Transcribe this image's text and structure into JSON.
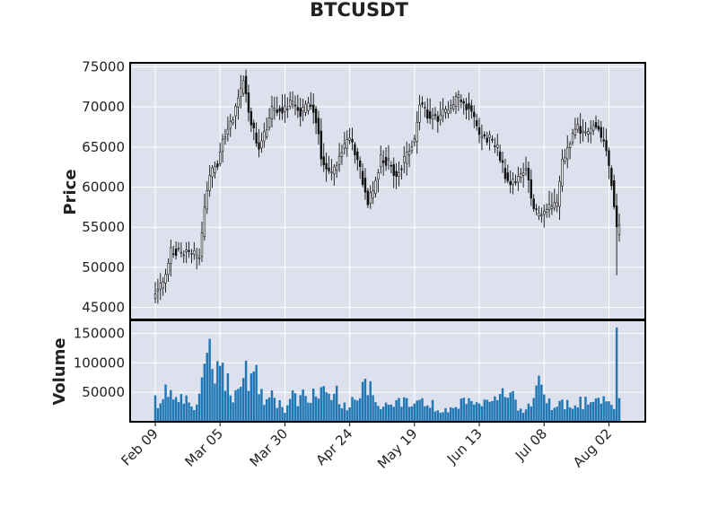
{
  "chart_data": {
    "type": "candlestick",
    "title": "BTCUSDT",
    "price_panel": {
      "ylabel": "Price",
      "ylim": [
        43500,
        75500
      ],
      "yticks": [
        45000,
        50000,
        55000,
        60000,
        65000,
        70000,
        75000
      ],
      "ytick_labels": [
        "45000",
        "50000",
        "55000",
        "60000",
        "65000",
        "70000",
        "75000"
      ]
    },
    "volume_panel": {
      "ylabel": "Volume",
      "ylim": [
        0,
        172000
      ],
      "yticks": [
        50000,
        100000,
        150000
      ],
      "ytick_labels": [
        "50000",
        "100000",
        "150000"
      ]
    },
    "x": {
      "start": "2024-02-09",
      "end": "2024-08-06",
      "ticks": [
        "Feb 09",
        "Mar 05",
        "Mar 30",
        "Apr 24",
        "May 19",
        "Jun 13",
        "Jul 08",
        "Aug 02"
      ]
    },
    "close_anchors": [
      [
        "Feb 09",
        47200
      ],
      [
        "Feb 12",
        48200
      ],
      [
        "Feb 15",
        51900
      ],
      [
        "Feb 18",
        52000
      ],
      [
        "Feb 22",
        51700
      ],
      [
        "Feb 26",
        51400
      ],
      [
        "Feb 28",
        57000
      ],
      [
        "Mar 01",
        61500
      ],
      [
        "Mar 04",
        63000
      ],
      [
        "Mar 06",
        66000
      ],
      [
        "Mar 10",
        68500
      ],
      [
        "Mar 13",
        72000
      ],
      [
        "Mar 14",
        73400
      ],
      [
        "Mar 17",
        68000
      ],
      [
        "Mar 20",
        64500
      ],
      [
        "Mar 22",
        66500
      ],
      [
        "Mar 25",
        69800
      ],
      [
        "Mar 28",
        69500
      ],
      [
        "Apr 01",
        70500
      ],
      [
        "Apr 05",
        69200
      ],
      [
        "Apr 09",
        70500
      ],
      [
        "Apr 12",
        67000
      ],
      [
        "Apr 13",
        63500
      ],
      [
        "Apr 17",
        61500
      ],
      [
        "Apr 21",
        64500
      ],
      [
        "Apr 24",
        66000
      ],
      [
        "Apr 27",
        63500
      ],
      [
        "May 01",
        58000
      ],
      [
        "May 03",
        59500
      ],
      [
        "May 06",
        63500
      ],
      [
        "May 09",
        63000
      ],
      [
        "May 12",
        61500
      ],
      [
        "May 16",
        64000
      ],
      [
        "May 19",
        66000
      ],
      [
        "May 21",
        70500
      ],
      [
        "May 24",
        69000
      ],
      [
        "May 28",
        68500
      ],
      [
        "Jun 01",
        69800
      ],
      [
        "Jun 05",
        71200
      ],
      [
        "Jun 07",
        70500
      ],
      [
        "Jun 10",
        69500
      ],
      [
        "Jun 13",
        66500
      ],
      [
        "Jun 17",
        66000
      ],
      [
        "Jun 20",
        64800
      ],
      [
        "Jun 24",
        60500
      ],
      [
        "Jun 27",
        61000
      ],
      [
        "Jul 01",
        62500
      ],
      [
        "Jul 04",
        57000
      ],
      [
        "Jul 07",
        56500
      ],
      [
        "Jul 10",
        57500
      ],
      [
        "Jul 13",
        57800
      ],
      [
        "Jul 15",
        63000
      ],
      [
        "Jul 18",
        65500
      ],
      [
        "Jul 21",
        67500
      ],
      [
        "Jul 24",
        66500
      ],
      [
        "Jul 27",
        68000
      ],
      [
        "Jul 29",
        67200
      ],
      [
        "Aug 01",
        64500
      ],
      [
        "Aug 03",
        60500
      ],
      [
        "Aug 04",
        57500
      ],
      [
        "Aug 05",
        54500
      ],
      [
        "Aug 06",
        55500
      ]
    ],
    "volume_anchors": [
      [
        "Feb 09",
        70000
      ],
      [
        "Feb 10",
        25000
      ],
      [
        "Feb 12",
        58000
      ],
      [
        "Feb 14",
        55000
      ],
      [
        "Feb 16",
        30000
      ],
      [
        "Feb 20",
        40000
      ],
      [
        "Feb 24",
        22000
      ],
      [
        "Feb 28",
        80000
      ],
      [
        "Mar 01",
        112000
      ],
      [
        "Mar 04",
        80000
      ],
      [
        "Mar 05",
        133000
      ],
      [
        "Mar 06",
        80000
      ],
      [
        "Mar 08",
        75000
      ],
      [
        "Mar 10",
        50000
      ],
      [
        "Mar 12",
        65000
      ],
      [
        "Mar 14",
        102000
      ],
      [
        "Mar 16",
        58000
      ],
      [
        "Mar 18",
        96000
      ],
      [
        "Mar 20",
        62000
      ],
      [
        "Mar 22",
        45000
      ],
      [
        "Mar 25",
        40000
      ],
      [
        "Mar 30",
        20000
      ],
      [
        "Apr 01",
        45000
      ],
      [
        "Apr 05",
        40000
      ],
      [
        "Apr 10",
        45000
      ],
      [
        "Apr 13",
        58000
      ],
      [
        "Apr 15",
        40000
      ],
      [
        "Apr 18",
        65000
      ],
      [
        "Apr 21",
        25000
      ],
      [
        "Apr 24",
        28000
      ],
      [
        "Apr 30",
        55000
      ],
      [
        "May 01",
        60000
      ],
      [
        "May 05",
        25000
      ],
      [
        "May 10",
        28000
      ],
      [
        "May 15",
        45000
      ],
      [
        "May 18",
        28000
      ],
      [
        "May 21",
        45000
      ],
      [
        "May 25",
        30000
      ],
      [
        "Jun 01",
        20000
      ],
      [
        "Jun 05",
        30000
      ],
      [
        "Jun 07",
        40000
      ],
      [
        "Jun 11",
        28000
      ],
      [
        "Jun 13",
        35000
      ],
      [
        "Jun 18",
        30000
      ],
      [
        "Jun 24",
        50000
      ],
      [
        "Jun 30",
        20000
      ],
      [
        "Jul 04",
        45000
      ],
      [
        "Jul 05",
        82000
      ],
      [
        "Jul 08",
        40000
      ],
      [
        "Jul 12",
        25000
      ],
      [
        "Jul 15",
        35000
      ],
      [
        "Jul 18",
        30000
      ],
      [
        "Jul 25",
        35000
      ],
      [
        "Jul 31",
        35000
      ],
      [
        "Aug 02",
        38000
      ],
      [
        "Aug 04",
        28000
      ],
      [
        "Aug 05",
        160000
      ],
      [
        "Aug 06",
        40000
      ]
    ],
    "colors": {
      "panel_bg": "#dde1ed",
      "grid": "#ffffff",
      "candle": "#111111",
      "volume_bar": "#1f77b4",
      "frame": "#000000"
    },
    "grid": true
  }
}
